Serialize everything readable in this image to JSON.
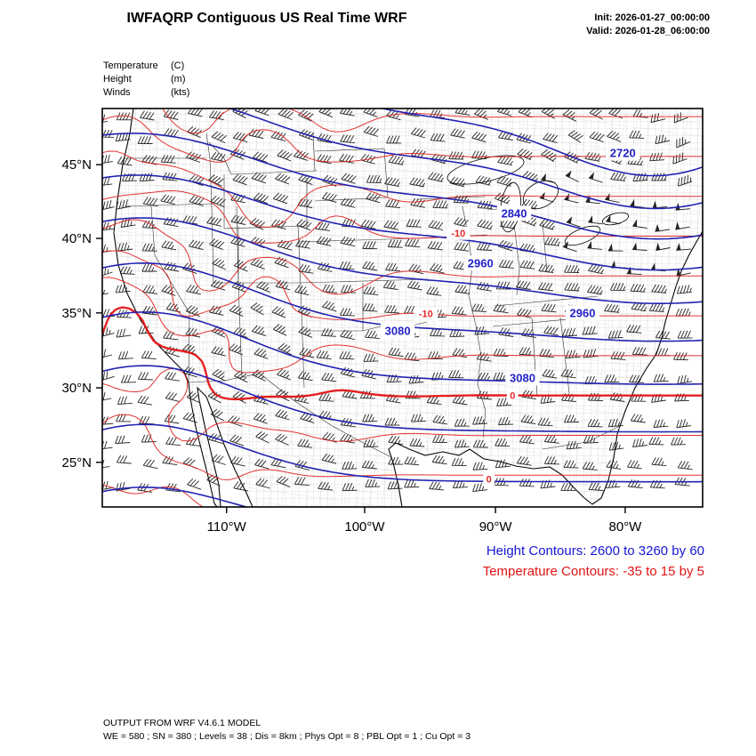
{
  "header": {
    "title": "IWFAQRP Contiguous US Real Time WRF",
    "init": "Init: 2026-01-27_00:00:00",
    "valid": "Valid: 2026-01-28_06:00:00"
  },
  "legend": {
    "rows": [
      {
        "name": "Temperature",
        "unit": "(C)"
      },
      {
        "name": "Height",
        "unit": "(m)"
      },
      {
        "name": "Winds",
        "unit": "(kts)"
      }
    ]
  },
  "captions": {
    "height": "Height Contours: 2600 to 3260 by 60",
    "temperature": "Temperature Contours: -35 to 15 by 5"
  },
  "footer": {
    "line1": "OUTPUT FROM WRF V4.6.1 MODEL",
    "line2": "WE = 580 ; SN = 380 ; Levels = 38 ; Dis = 8km ; Phys Opt = 8 ; PBL Opt = 1 ; Cu Opt = 3"
  },
  "colors": {
    "height_contour": "#2222b2",
    "height_label": "#2222c8",
    "temp_contour": "#e02828",
    "temp_thick": "#e41414",
    "height_caption": "#1616d6",
    "temp_caption": "#e01414",
    "barb": "#111111",
    "county": "#b4b4b4"
  },
  "chart_data": {
    "type": "map",
    "region": "Contiguous US",
    "model": "WRF V4.6.1",
    "fields": [
      {
        "name": "Temperature",
        "units": "C",
        "style": "red contours"
      },
      {
        "name": "Height",
        "units": "m",
        "style": "blue contours"
      },
      {
        "name": "Winds",
        "units": "kts",
        "style": "wind barbs"
      }
    ],
    "x_axis": {
      "ticks": [
        {
          "label": "110°W",
          "f": 0.207
        },
        {
          "label": "100°W",
          "f": 0.437
        },
        {
          "label": "90°W",
          "f": 0.655
        },
        {
          "label": "80°W",
          "f": 0.871
        }
      ]
    },
    "y_axis": {
      "ticks": [
        {
          "label": "45°N",
          "f": 0.141
        },
        {
          "label": "40°N",
          "f": 0.326
        },
        {
          "label": "35°N",
          "f": 0.513
        },
        {
          "label": "30°N",
          "f": 0.701
        },
        {
          "label": "25°N",
          "f": 0.888
        }
      ]
    },
    "height_contours": {
      "units": "m",
      "min": 2600,
      "max": 3260,
      "step": 60,
      "labels": [
        {
          "value": 2720,
          "fx": 0.867,
          "fy": 0.112
        },
        {
          "value": 2840,
          "fx": 0.686,
          "fy": 0.263
        },
        {
          "value": 2960,
          "fx": 0.63,
          "fy": 0.388
        },
        {
          "value": 2960,
          "fx": 0.8,
          "fy": 0.513
        },
        {
          "value": 3080,
          "fx": 0.492,
          "fy": 0.558
        },
        {
          "value": 3080,
          "fx": 0.7,
          "fy": 0.676
        }
      ]
    },
    "temperature_contours": {
      "units": "C",
      "min": -35,
      "max": 15,
      "step": 5,
      "labels": [
        {
          "value": -10,
          "fx": 0.593,
          "fy": 0.313
        },
        {
          "value": -10,
          "fx": 0.538,
          "fy": 0.547
        },
        {
          "value": 0,
          "fx": 0.684,
          "fy": 0.826
        },
        {
          "value": 0,
          "fx": 0.644,
          "fy": 0.93
        }
      ]
    }
  }
}
